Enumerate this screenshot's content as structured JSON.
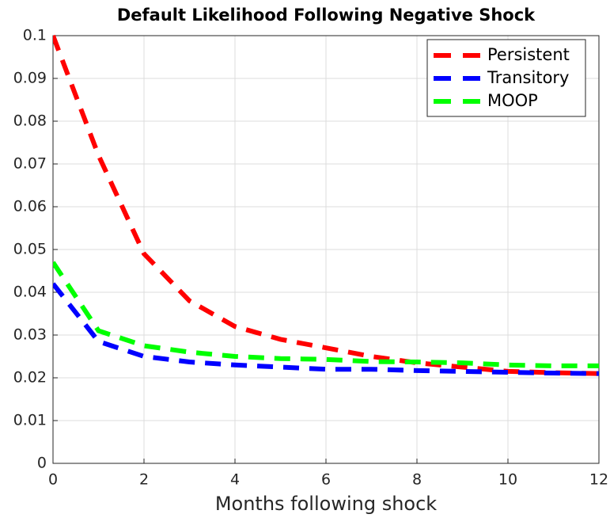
{
  "chart_data": {
    "type": "line",
    "title": "Default Likelihood Following Negative Shock",
    "x_label": "Months following shock",
    "x": [
      0,
      1,
      2,
      3,
      4,
      5,
      6,
      7,
      8,
      9,
      10,
      11,
      12
    ],
    "series": [
      {
        "name": "Persistent",
        "color": "#ff0000",
        "values": [
          0.1,
          0.072,
          0.049,
          0.038,
          0.032,
          0.029,
          0.027,
          0.025,
          0.0235,
          0.0225,
          0.0215,
          0.0212,
          0.021
        ]
      },
      {
        "name": "Transitory",
        "color": "#0000ff",
        "values": [
          0.042,
          0.0285,
          0.025,
          0.0237,
          0.023,
          0.0225,
          0.022,
          0.022,
          0.0217,
          0.0215,
          0.0213,
          0.0211,
          0.021
        ]
      },
      {
        "name": "MOOP",
        "color": "#00ff00",
        "values": [
          0.047,
          0.031,
          0.0275,
          0.026,
          0.025,
          0.0245,
          0.0243,
          0.0238,
          0.0237,
          0.0235,
          0.023,
          0.0228,
          0.0228
        ]
      }
    ],
    "xlim": [
      0,
      12
    ],
    "xticks": [
      0,
      2,
      4,
      6,
      8,
      10,
      12
    ],
    "ylim": [
      0,
      0.1
    ],
    "yticks": [
      0,
      0.01,
      0.02,
      0.03,
      0.04,
      0.05,
      0.06,
      0.07,
      0.08,
      0.09,
      0.1
    ],
    "grid": true,
    "legend": "top-right"
  }
}
